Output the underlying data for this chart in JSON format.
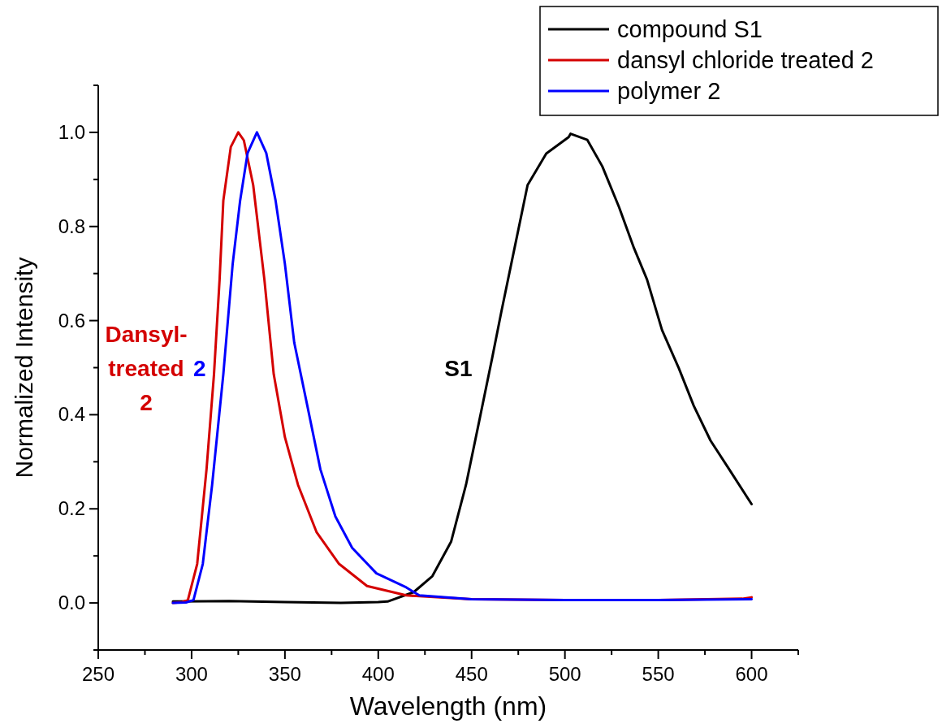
{
  "chart_data": {
    "type": "line",
    "xlabel": "Wavelength (nm)",
    "ylabel": "Normalized Intensity",
    "xlim": [
      250,
      625
    ],
    "ylim": [
      -0.1,
      1.1
    ],
    "xticks": [
      250,
      {
        "value": 275,
        "label": null
      },
      300,
      {
        "value": 325,
        "label": null
      },
      350,
      {
        "value": 375,
        "label": null
      },
      400,
      {
        "value": 425,
        "label": null
      },
      450,
      {
        "value": 475,
        "label": null
      },
      500,
      {
        "value": 525,
        "label": null
      },
      550,
      {
        "value": 575,
        "label": null
      },
      600,
      {
        "value": 625,
        "label": null
      }
    ],
    "yticks": [
      {
        "value": -0.1,
        "label": null
      },
      {
        "value": 0,
        "label": "0.0"
      },
      {
        "value": 0.1,
        "label": null
      },
      {
        "value": 0.2,
        "label": "0.2"
      },
      {
        "value": 0.3,
        "label": null
      },
      {
        "value": 0.4,
        "label": "0.4"
      },
      {
        "value": 0.5,
        "label": null
      },
      {
        "value": 0.6,
        "label": "0.6"
      },
      {
        "value": 0.7,
        "label": null
      },
      {
        "value": 0.8,
        "label": "0.8"
      },
      {
        "value": 0.9,
        "label": null
      },
      {
        "value": 1,
        "label": "1.0"
      },
      {
        "value": 1.1,
        "label": null
      }
    ],
    "grid": false,
    "legend": "top right",
    "marker": "none",
    "line_style": "solid",
    "series": [
      {
        "name": "compound S1",
        "color": "#000000",
        "x": [
          290,
          320,
          350,
          380,
          400,
          405,
          419,
          429,
          439,
          447,
          454,
          461,
          466,
          473,
          480,
          490,
          502,
          503,
          512,
          520,
          529,
          537,
          544,
          552,
          561,
          569,
          578,
          588,
          600
        ],
        "values": [
          0.003,
          0.004,
          0.002,
          0.0,
          0.002,
          0.003,
          0.023,
          0.057,
          0.13,
          0.251,
          0.385,
          0.52,
          0.62,
          0.754,
          0.888,
          0.955,
          0.99,
          0.997,
          0.984,
          0.928,
          0.841,
          0.754,
          0.687,
          0.58,
          0.499,
          0.419,
          0.345,
          0.284,
          0.21
        ]
      },
      {
        "name": "dansyl chloride treated 2",
        "color": "#d40000",
        "x": [
          290,
          295,
          298,
          303,
          308,
          312,
          315,
          317,
          321,
          325,
          328,
          333,
          339,
          344,
          350,
          357,
          367,
          379,
          394,
          415,
          450,
          500,
          550,
          595,
          600
        ],
        "values": [
          0,
          0.002,
          0.006,
          0.083,
          0.284,
          0.486,
          0.687,
          0.855,
          0.969,
          1.0,
          0.983,
          0.888,
          0.687,
          0.486,
          0.352,
          0.251,
          0.15,
          0.083,
          0.036,
          0.016,
          0.008,
          0.006,
          0.006,
          0.009,
          0.012
        ]
      },
      {
        "name": "polymer 2",
        "color": "#0000ff",
        "x": [
          290,
          297,
          301,
          306,
          311,
          317,
          322,
          326,
          330,
          335,
          340,
          345,
          350,
          355,
          362,
          369,
          377,
          386,
          399,
          415,
          422,
          450,
          500,
          550,
          600
        ],
        "values": [
          0,
          0.001,
          0.006,
          0.083,
          0.251,
          0.486,
          0.72,
          0.855,
          0.956,
          1.0,
          0.956,
          0.855,
          0.72,
          0.553,
          0.419,
          0.284,
          0.184,
          0.117,
          0.063,
          0.033,
          0.016,
          0.008,
          0.006,
          0.006,
          0.008
        ]
      }
    ],
    "annotations": [
      "S1",
      "Dansyl-\ntreated\n2",
      "2"
    ]
  }
}
